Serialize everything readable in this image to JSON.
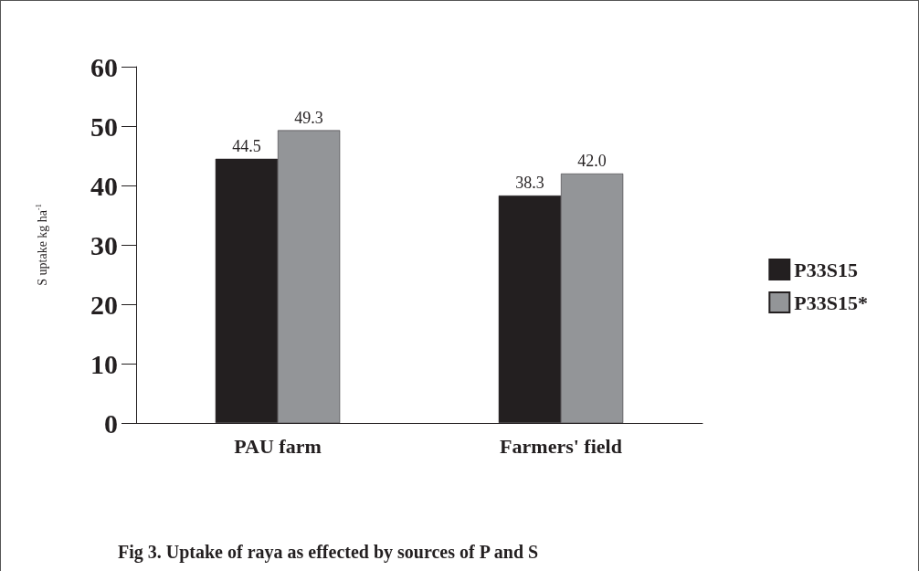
{
  "chart_data": {
    "type": "bar",
    "title": "Fig 3. Uptake of raya as effected by sources of P and S",
    "ylabel": "S uptake kg ha$^{-1}$",
    "categories": [
      "PAU farm",
      "Farmers' field"
    ],
    "series": [
      {
        "name": "P33S15",
        "color": "#231f20",
        "values": [
          44.5,
          38.3
        ],
        "value_labels": [
          "44.5",
          "38.3"
        ]
      },
      {
        "name": "P33S15*",
        "color": "#939598",
        "values": [
          49.3,
          42.0
        ],
        "value_labels": [
          "49.3",
          "42.0"
        ]
      }
    ],
    "ylim": [
      0,
      60
    ],
    "yticks": [
      0,
      10,
      20,
      30,
      40,
      50,
      60
    ],
    "grid": false,
    "legend": "right"
  }
}
